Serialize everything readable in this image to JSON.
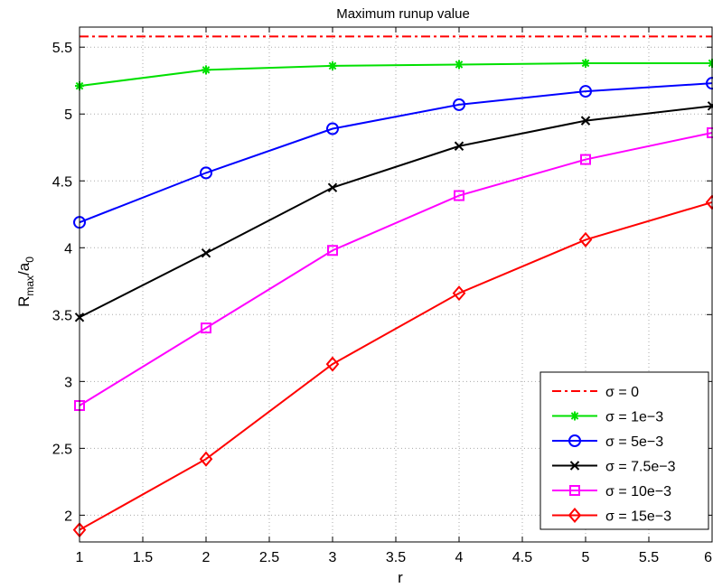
{
  "chart_data": {
    "type": "line",
    "title": "Maximum runup value",
    "xlabel": "r",
    "ylabel_main": "R",
    "ylabel_sub1": "max",
    "ylabel_mid": "/a",
    "ylabel_sub2": "0",
    "xlim": [
      1,
      6
    ],
    "ylim": [
      1.8,
      5.65
    ],
    "xticks": [
      1,
      1.5,
      2,
      2.5,
      3,
      3.5,
      4,
      4.5,
      5,
      5.5,
      6
    ],
    "xtick_labels": [
      "1",
      "1.5",
      "2",
      "2.5",
      "3",
      "3.5",
      "4",
      "4.5",
      "5",
      "5.5",
      "6"
    ],
    "yticks": [
      2,
      2.5,
      3,
      3.5,
      4,
      4.5,
      5,
      5.5
    ],
    "ytick_labels": [
      "2",
      "2.5",
      "3",
      "3.5",
      "4",
      "4.5",
      "5",
      "5.5"
    ],
    "grid": true,
    "legend_position": "bottom-right",
    "x": [
      1,
      2,
      3,
      4,
      5,
      6
    ],
    "series": [
      {
        "name": "σ = 0",
        "color": "#ff0000",
        "marker": "none",
        "dash": "dashdot",
        "values": [
          5.58,
          5.58,
          5.58,
          5.58,
          5.58,
          5.58
        ]
      },
      {
        "name": "σ = 1e−3",
        "color": "#00e000",
        "marker": "star",
        "dash": "solid",
        "values": [
          5.21,
          5.33,
          5.36,
          5.37,
          5.38,
          5.38
        ]
      },
      {
        "name": "σ = 5e−3",
        "color": "#0000ff",
        "marker": "circle",
        "dash": "solid",
        "values": [
          4.19,
          4.56,
          4.89,
          5.07,
          5.17,
          5.23
        ]
      },
      {
        "name": "σ = 7.5e−3",
        "color": "#000000",
        "marker": "x",
        "dash": "solid",
        "values": [
          3.48,
          3.96,
          4.45,
          4.76,
          4.95,
          5.06
        ]
      },
      {
        "name": "σ = 10e−3",
        "color": "#ff00ff",
        "marker": "square",
        "dash": "solid",
        "values": [
          2.82,
          3.4,
          3.98,
          4.39,
          4.66,
          4.86
        ]
      },
      {
        "name": "σ = 15e−3",
        "color": "#ff0000",
        "marker": "diamond",
        "dash": "solid",
        "values": [
          1.89,
          2.42,
          3.13,
          3.66,
          4.06,
          4.34
        ]
      }
    ]
  }
}
